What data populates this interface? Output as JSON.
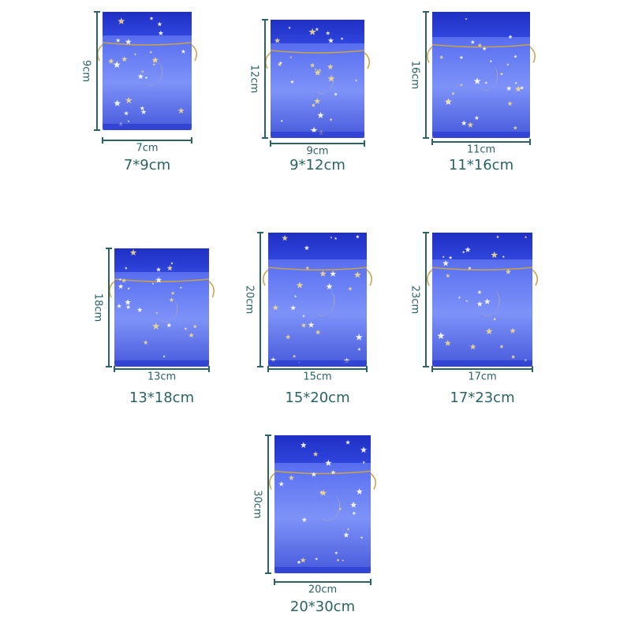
{
  "items": [
    {
      "width": "7cm",
      "height": "9cm",
      "caption": "7*9cm"
    },
    {
      "width": "9cm",
      "height": "12cm",
      "caption": "9*12cm"
    },
    {
      "width": "11cm",
      "height": "16cm",
      "caption": "11*16cm"
    },
    {
      "width": "13cm",
      "height": "18cm",
      "caption": "13*18cm"
    },
    {
      "width": "15cm",
      "height": "20cm",
      "caption": "15*20cm"
    },
    {
      "width": "17cm",
      "height": "23cm",
      "caption": "17*23cm"
    },
    {
      "width": "20cm",
      "height": "30cm",
      "caption": "20*30cm"
    }
  ]
}
